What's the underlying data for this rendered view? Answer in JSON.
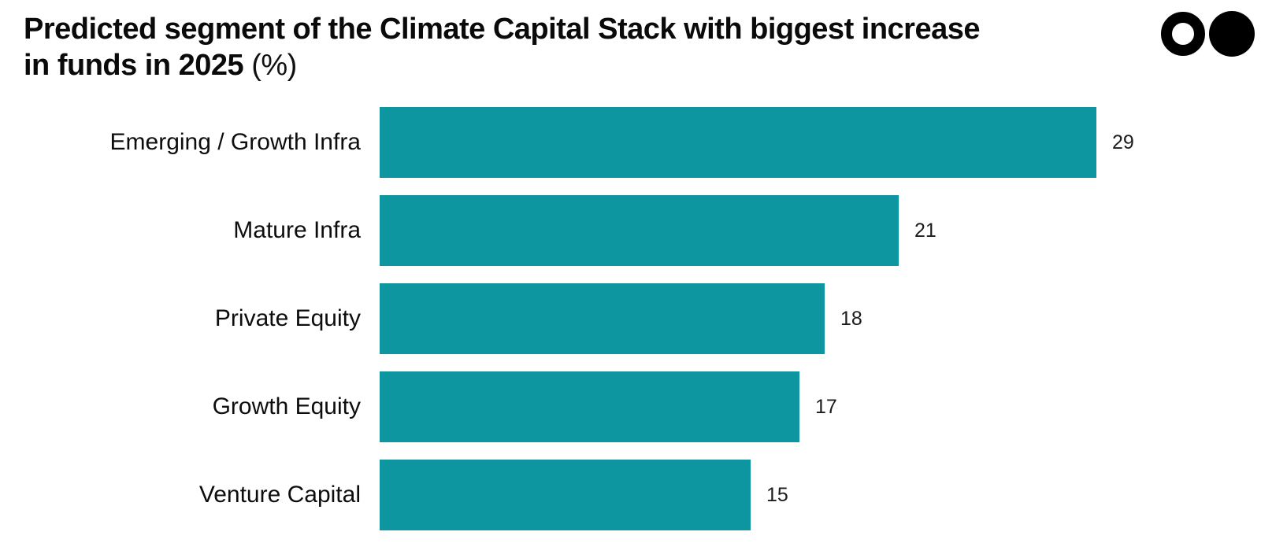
{
  "header": {
    "title": {
      "text": "Predicted segment of the Climate Capital Stack with biggest increase in funds in 2025",
      "line1": "Predicted segment of the Climate Capital Stack with biggest increase",
      "line2": "in funds in 2025",
      "unit": "(%)"
    },
    "logo": {
      "icons": [
        "ring-circle-icon",
        "filled-circle-icon"
      ],
      "color": "#000000"
    }
  },
  "chart_data": {
    "type": "bar",
    "orientation": "horizontal",
    "title": "Predicted segment of the Climate Capital Stack with biggest increase in funds in 2025 (%)",
    "categories": [
      "Emerging / Growth Infra",
      "Mature Infra",
      "Private Equity",
      "Growth Equity",
      "Venture Capital"
    ],
    "values": [
      29,
      21,
      18,
      17,
      15
    ],
    "value_suffix": "",
    "xlabel": "",
    "ylabel": "",
    "xlim": [
      0,
      30
    ],
    "grid": false,
    "legend": false,
    "bar_color": "#0d96a0",
    "label_color": "#0d0d0d",
    "value_label_color": "#1c1c1c",
    "value_labels_shown": true
  }
}
